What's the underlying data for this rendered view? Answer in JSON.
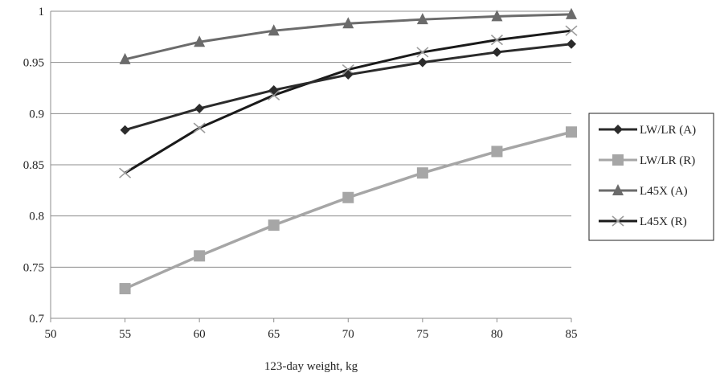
{
  "chart_data": {
    "type": "line",
    "title": "",
    "xlabel": "123-day weight, kg",
    "ylabel": "",
    "x": [
      55,
      60,
      65,
      70,
      75,
      80,
      85
    ],
    "xlim": [
      50,
      85
    ],
    "ylim": [
      0.7,
      1
    ],
    "xticks": [
      "50",
      "55",
      "60",
      "65",
      "70",
      "75",
      "80",
      "85"
    ],
    "yticks": [
      "0.7",
      "0.75",
      "0.8",
      "0.85",
      "0.9",
      "0.95",
      "1"
    ],
    "grid": "horizontal",
    "legend": "right",
    "series": [
      {
        "name": "LW/LR (A)",
        "marker": "diamond",
        "color": "#2b2b2b",
        "values": [
          0.884,
          0.905,
          0.923,
          0.938,
          0.95,
          0.96,
          0.968
        ]
      },
      {
        "name": "LW/LR (R)",
        "marker": "square",
        "color": "#a6a6a6",
        "values": [
          0.729,
          0.761,
          0.791,
          0.818,
          0.842,
          0.863,
          0.882
        ]
      },
      {
        "name": "L45X (A)",
        "marker": "triangle",
        "color": "#6b6b6b",
        "values": [
          0.953,
          0.97,
          0.981,
          0.988,
          0.992,
          0.995,
          0.997
        ]
      },
      {
        "name": "L45X (R)",
        "marker": "x",
        "color": "#1a1a1a",
        "values": [
          0.842,
          0.886,
          0.918,
          0.943,
          0.96,
          0.972,
          0.981
        ]
      }
    ]
  }
}
